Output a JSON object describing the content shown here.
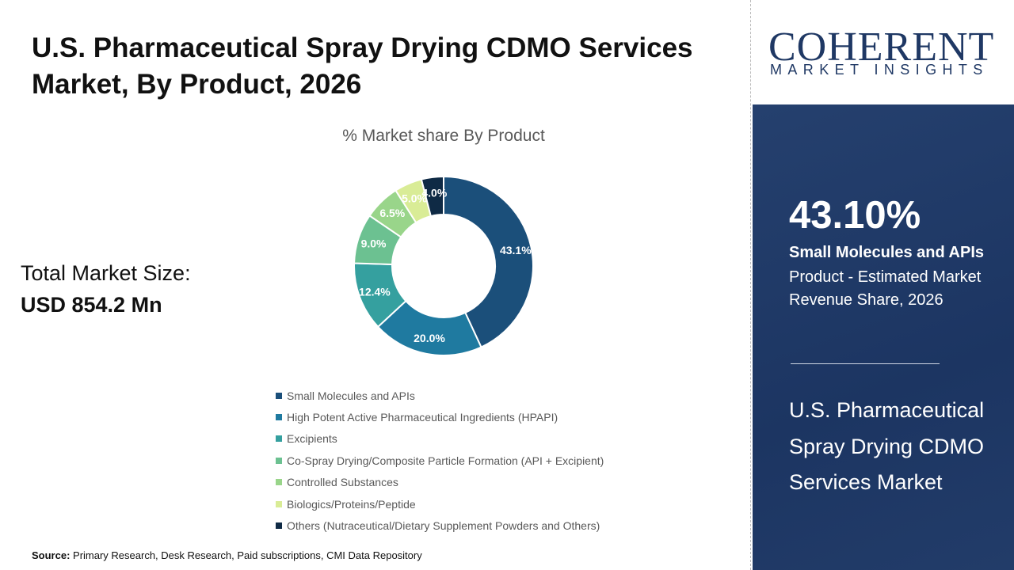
{
  "title": "U.S. Pharmaceutical Spray Drying CDMO Services Market, By Product, 2026",
  "total": {
    "label": "Total Market Size:",
    "value": "USD 854.2 Mn"
  },
  "source": {
    "label": "Source:",
    "text": " Primary Research, Desk Research, Paid subscriptions, CMI Data Repository"
  },
  "logo": {
    "big": "COHERENT",
    "small": "MARKET INSIGHTS"
  },
  "panel": {
    "percent": "43.10%",
    "segment": "Small Molecules and APIs",
    "description": "Product - Estimated Market Revenue Share, 2026",
    "market": "U.S. Pharmaceutical Spray Drying CDMO Services Market"
  },
  "chart_data": {
    "type": "pie",
    "donut": true,
    "title": "% Market share By Product",
    "legend_position": "bottom",
    "categories": [
      "Small Molecules and APIs",
      "High Potent Active Pharmaceutical Ingredients (HPAPI)",
      "Excipients",
      "Co-Spray Drying/Composite Particle Formation (API + Excipient)",
      "Controlled Substances",
      "Biologics/Proteins/Peptide",
      "Others (Nutraceutical/Dietary Supplement Powders and Others)"
    ],
    "values": [
      43.1,
      20.0,
      12.4,
      9.0,
      6.5,
      5.0,
      4.0
    ],
    "labels": [
      "43.1%",
      "20.0%",
      "12.4%",
      "9.0%",
      "6.5%",
      "5.0%",
      "4.0%"
    ],
    "colors": [
      "#1b4f7a",
      "#1f7aa0",
      "#35a09f",
      "#6cc191",
      "#99d58a",
      "#d9ec96",
      "#0f2a45"
    ]
  }
}
